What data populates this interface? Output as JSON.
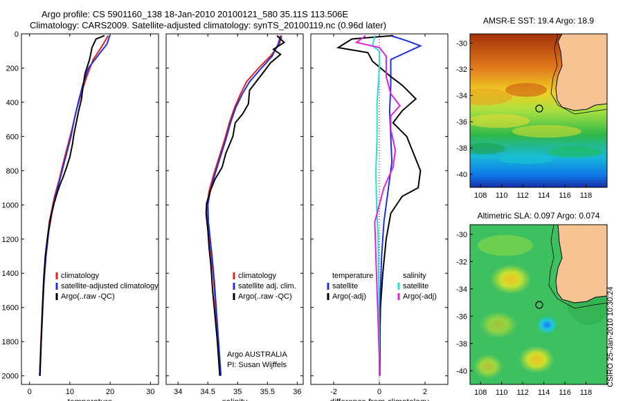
{
  "header": {
    "line1": "Argo profile: CS 5901160_138 18-Jan-2010 20100121_580 35.11S 113.506E",
    "line2": "Climatology: CARS2009. Satellite-adjusted climatology: synTS_20100119.nc (0.96d later)"
  },
  "credit": "CSIRO 25-Jan-2010 10:30:24",
  "colors": {
    "red": "#e8201a",
    "blue": "#1830e8",
    "black": "#000000",
    "cyan": "#22e0e0",
    "magenta": "#e020e0",
    "coast": "#f7c392"
  },
  "chart_data": [
    {
      "type": "line",
      "id": "temperature",
      "xlabel": "temperature",
      "xlim": [
        -2,
        32
      ],
      "ylim": [
        2050,
        0
      ],
      "xticks": [
        0,
        10,
        20,
        30
      ],
      "yticks": [
        0,
        200,
        400,
        600,
        800,
        1000,
        1200,
        1400,
        1600,
        1800,
        2000
      ],
      "legend": [
        "climatology",
        "satellite-adjusted climatology",
        "Argo(..raw -QC)"
      ],
      "series": [
        {
          "name": "climatology",
          "color": "red",
          "points": [
            [
              19.5,
              10
            ],
            [
              18.3,
              60
            ],
            [
              15.8,
              150
            ],
            [
              14.2,
              250
            ],
            [
              12.8,
              350
            ],
            [
              11.6,
              450
            ],
            [
              10.6,
              550
            ],
            [
              9.5,
              650
            ],
            [
              8.4,
              750
            ],
            [
              7.4,
              850
            ],
            [
              6.2,
              950
            ],
            [
              4.9,
              1100
            ],
            [
              4.2,
              1250
            ],
            [
              3.6,
              1400
            ],
            [
              3.2,
              1600
            ],
            [
              2.8,
              1800
            ],
            [
              2.5,
              2000
            ]
          ]
        },
        {
          "name": "satellite-adjusted climatology",
          "color": "blue",
          "points": [
            [
              19.9,
              10
            ],
            [
              19.2,
              60
            ],
            [
              17.2,
              120
            ],
            [
              14.6,
              200
            ],
            [
              13.2,
              300
            ],
            [
              12.1,
              400
            ],
            [
              11.1,
              500
            ],
            [
              10.3,
              600
            ],
            [
              9.2,
              700
            ],
            [
              8.1,
              800
            ],
            [
              7.0,
              900
            ],
            [
              5.9,
              1000
            ],
            [
              4.8,
              1150
            ],
            [
              4.1,
              1300
            ],
            [
              3.6,
              1450
            ],
            [
              3.2,
              1650
            ],
            [
              2.8,
              1850
            ],
            [
              2.5,
              2000
            ]
          ]
        },
        {
          "name": "Argo(..raw -QC)",
          "color": "black",
          "points": [
            [
              18.6,
              10
            ],
            [
              16.5,
              30
            ],
            [
              15.5,
              80
            ],
            [
              14.9,
              150
            ],
            [
              13.8,
              230
            ],
            [
              13.3,
              300
            ],
            [
              12.9,
              380
            ],
            [
              12.1,
              460
            ],
            [
              11.6,
              520
            ],
            [
              11.0,
              590
            ],
            [
              10.6,
              650
            ],
            [
              10.0,
              720
            ],
            [
              9.2,
              780
            ],
            [
              8.3,
              840
            ],
            [
              7.6,
              880
            ],
            [
              7.0,
              920
            ],
            [
              6.1,
              990
            ],
            [
              5.2,
              1080
            ],
            [
              4.5,
              1180
            ],
            [
              3.9,
              1300
            ],
            [
              3.5,
              1450
            ],
            [
              3.2,
              1600
            ],
            [
              2.9,
              1800
            ],
            [
              2.6,
              2000
            ]
          ]
        }
      ]
    },
    {
      "type": "line",
      "id": "salinity",
      "xlabel": "salinity",
      "xlim": [
        33.8,
        36.1
      ],
      "ylim": [
        2050,
        0
      ],
      "xticks": [
        34,
        34.5,
        35,
        35.5,
        36
      ],
      "legend": [
        "climatology",
        "satellite adj. clim.",
        "Argo(..raw -QC)"
      ],
      "annotation": [
        "Argo AUSTRALIA",
        "PI: Susan Wijffels"
      ],
      "series": [
        {
          "name": "climatology",
          "color": "red",
          "points": [
            [
              35.74,
              10
            ],
            [
              35.7,
              60
            ],
            [
              35.55,
              130
            ],
            [
              35.35,
              200
            ],
            [
              35.15,
              280
            ],
            [
              35.05,
              350
            ],
            [
              34.95,
              430
            ],
            [
              34.86,
              520
            ],
            [
              34.78,
              620
            ],
            [
              34.69,
              720
            ],
            [
              34.6,
              820
            ],
            [
              34.52,
              920
            ],
            [
              34.49,
              1000
            ],
            [
              34.5,
              1100
            ],
            [
              34.53,
              1200
            ],
            [
              34.56,
              1300
            ],
            [
              34.6,
              1450
            ],
            [
              34.63,
              1600
            ],
            [
              34.67,
              1800
            ],
            [
              34.71,
              2000
            ]
          ]
        },
        {
          "name": "satellite adj. clim.",
          "color": "blue",
          "points": [
            [
              35.72,
              10
            ],
            [
              35.68,
              60
            ],
            [
              35.58,
              130
            ],
            [
              35.4,
              200
            ],
            [
              35.2,
              280
            ],
            [
              35.08,
              350
            ],
            [
              34.97,
              430
            ],
            [
              34.88,
              520
            ],
            [
              34.8,
              620
            ],
            [
              34.71,
              720
            ],
            [
              34.62,
              820
            ],
            [
              34.54,
              920
            ],
            [
              34.5,
              1000
            ],
            [
              34.51,
              1100
            ],
            [
              34.54,
              1200
            ],
            [
              34.57,
              1300
            ],
            [
              34.61,
              1450
            ],
            [
              34.64,
              1600
            ],
            [
              34.68,
              1800
            ],
            [
              34.72,
              2000
            ]
          ]
        },
        {
          "name": "Argo(..raw -QC)",
          "color": "black",
          "points": [
            [
              35.66,
              10
            ],
            [
              35.78,
              50
            ],
            [
              35.6,
              90
            ],
            [
              35.72,
              120
            ],
            [
              35.55,
              170
            ],
            [
              35.42,
              230
            ],
            [
              35.2,
              330
            ],
            [
              35.18,
              410
            ],
            [
              35.08,
              470
            ],
            [
              34.96,
              520
            ],
            [
              34.92,
              600
            ],
            [
              34.8,
              700
            ],
            [
              34.74,
              780
            ],
            [
              34.62,
              850
            ],
            [
              34.55,
              910
            ],
            [
              34.48,
              990
            ],
            [
              34.47,
              1050
            ],
            [
              34.5,
              1150
            ],
            [
              34.52,
              1250
            ],
            [
              34.55,
              1350
            ],
            [
              34.58,
              1500
            ],
            [
              34.62,
              1650
            ],
            [
              34.66,
              1800
            ],
            [
              34.7,
              2000
            ]
          ]
        }
      ]
    },
    {
      "type": "line",
      "id": "difference",
      "xlabel": "difference from climatology",
      "xlim": [
        -3,
        3
      ],
      "ylim": [
        2050,
        0
      ],
      "xticks": [
        -2,
        0,
        2
      ],
      "legend_temperature": [
        "temperature",
        "satellite",
        "Argo(-adj)"
      ],
      "legend_salinity": [
        "salinity",
        "satellite",
        "Argo(-adj)"
      ],
      "series": [
        {
          "name": "temperature satellite",
          "color": "blue",
          "points": [
            [
              0.5,
              10
            ],
            [
              1.2,
              40
            ],
            [
              1.8,
              70
            ],
            [
              0.5,
              150
            ],
            [
              0.5,
              300
            ],
            [
              0.45,
              450
            ],
            [
              0.5,
              600
            ],
            [
              0.55,
              750
            ],
            [
              0.4,
              900
            ],
            [
              0.3,
              1000
            ],
            [
              0.2,
              1100
            ],
            [
              0.1,
              1300
            ],
            [
              0.05,
              1500
            ],
            [
              0.03,
              1700
            ],
            [
              0.02,
              2000
            ]
          ]
        },
        {
          "name": "temperature Argo(-adj)",
          "color": "black",
          "points": [
            [
              0.6,
              10
            ],
            [
              -1.2,
              30
            ],
            [
              -1.8,
              80
            ],
            [
              -0.5,
              110
            ],
            [
              -0.3,
              160
            ],
            [
              0.5,
              250
            ],
            [
              1.0,
              300
            ],
            [
              1.6,
              380
            ],
            [
              1.0,
              450
            ],
            [
              0.6,
              520
            ],
            [
              1.2,
              600
            ],
            [
              1.5,
              700
            ],
            [
              1.8,
              800
            ],
            [
              1.7,
              900
            ],
            [
              1.0,
              950
            ],
            [
              0.5,
              1050
            ],
            [
              0.3,
              1200
            ],
            [
              0.15,
              1400
            ],
            [
              0.05,
              1600
            ],
            [
              0.02,
              1800
            ],
            [
              0.0,
              2000
            ]
          ]
        },
        {
          "name": "salinity satellite",
          "color": "cyan",
          "points": [
            [
              -0.2,
              10
            ],
            [
              -0.3,
              70
            ],
            [
              0,
              100
            ],
            [
              0,
              200
            ],
            [
              -0.1,
              400
            ],
            [
              -0.1,
              600
            ],
            [
              -0.15,
              800
            ],
            [
              -0.12,
              1000
            ],
            [
              -0.05,
              1200
            ],
            [
              -0.02,
              1500
            ],
            [
              0,
              1800
            ],
            [
              0,
              2000
            ]
          ]
        },
        {
          "name": "salinity Argo(-adj)",
          "color": "magenta",
          "points": [
            [
              -0.6,
              10
            ],
            [
              -1.0,
              50
            ],
            [
              0,
              80
            ],
            [
              0.3,
              130
            ],
            [
              0.3,
              250
            ],
            [
              0.5,
              350
            ],
            [
              0.9,
              420
            ],
            [
              0.5,
              480
            ],
            [
              0.5,
              560
            ],
            [
              0.7,
              680
            ],
            [
              0.6,
              780
            ],
            [
              0.2,
              900
            ],
            [
              0.0,
              1000
            ],
            [
              -0.2,
              1100
            ],
            [
              -0.15,
              1300
            ],
            [
              -0.1,
              1500
            ],
            [
              -0.05,
              1700
            ],
            [
              0,
              1900
            ],
            [
              0,
              2000
            ]
          ]
        }
      ]
    },
    {
      "type": "heatmap",
      "id": "sst-map",
      "title": "AMSR-E SST: 19.4 Argo: 18.9",
      "xlim": [
        107,
        120
      ],
      "ylim": [
        -41,
        -29.3
      ],
      "xticks": [
        108,
        110,
        112,
        114,
        116,
        118
      ],
      "yticks": [
        -30,
        -32,
        -34,
        -36,
        -38,
        -40
      ],
      "marker": [
        113.506,
        -35.11
      ]
    },
    {
      "type": "heatmap",
      "id": "sla-map",
      "title": "Altimetric SLA: 0.097 Argo: 0.074",
      "xlim": [
        107,
        120
      ],
      "ylim": [
        -41,
        -29.3
      ],
      "xticks": [
        108,
        110,
        112,
        114,
        116,
        118
      ],
      "yticks": [
        -30,
        -32,
        -34,
        -36,
        -38,
        -40
      ],
      "marker": [
        113.506,
        -35.11
      ]
    }
  ]
}
